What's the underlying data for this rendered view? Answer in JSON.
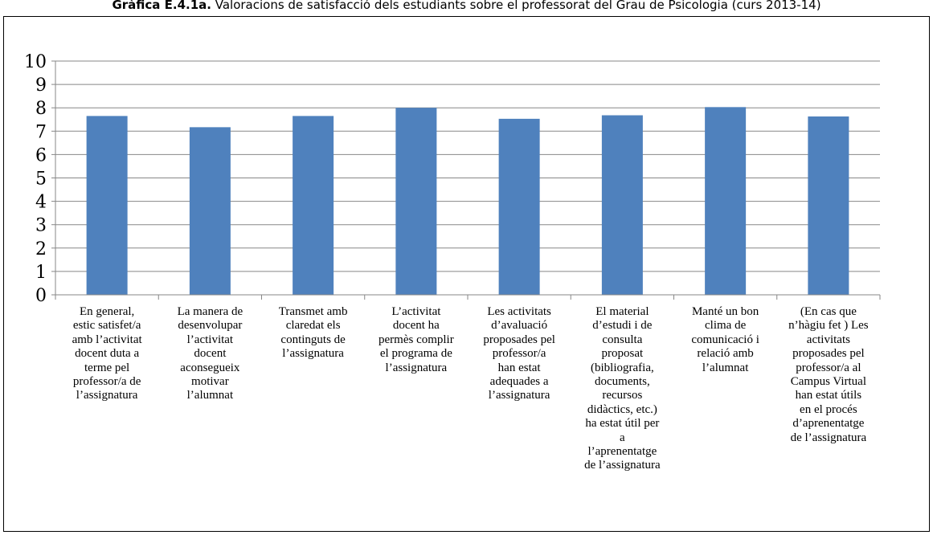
{
  "caption": {
    "prefix": "Gràfica E.4.1a.",
    "text": " Valoracions de satisfacció dels estudiants sobre el professorat del Grau de Psicologia (curs 2013-14)"
  },
  "chart_data": {
    "type": "bar",
    "title": "",
    "xlabel": "",
    "ylabel": "",
    "ylim": [
      0,
      10
    ],
    "yticks": [
      0,
      1,
      2,
      3,
      4,
      5,
      6,
      7,
      8,
      9,
      10
    ],
    "grid": true,
    "bar_color": "#4f81bd",
    "categories": [
      [
        "En general,",
        "estic satisfet/a",
        "amb l’activitat",
        "docent duta a",
        "terme pel",
        "professor/a de",
        "l’assignatura"
      ],
      [
        "La manera de",
        "desenvolupar",
        "l’activitat",
        "docent",
        "aconsegueix",
        "motivar",
        "l’alumnat"
      ],
      [
        "Transmet amb",
        "claredat els",
        "continguts de",
        "l’assignatura"
      ],
      [
        "L’activitat",
        "docent ha",
        "permès complir",
        "el programa de",
        "l’assignatura"
      ],
      [
        "Les activitats",
        "d’avaluació",
        "proposades pel",
        "professor/a",
        "han estat",
        "adequades a",
        "l’assignatura"
      ],
      [
        "El material",
        "d’estudi i de",
        "consulta",
        "proposat",
        "(bibliografia,",
        "documents,",
        "recursos",
        "didàctics, etc.)",
        "ha estat útil per",
        "a",
        "l’aprenentatge",
        "de l’assignatura"
      ],
      [
        "Manté un bon",
        "clima de",
        "comunicació i",
        "relació amb",
        "l’alumnat"
      ],
      [
        "(En cas que",
        "n’hàgiu fet ) Les",
        "activitats",
        "proposades pel",
        "professor/a al",
        "Campus Virtual",
        "han estat útils",
        "en el procés",
        "d’aprenentatge",
        "de l’assignatura"
      ]
    ],
    "values": [
      7.65,
      7.17,
      7.65,
      8.0,
      7.53,
      7.68,
      8.03,
      7.63
    ]
  }
}
